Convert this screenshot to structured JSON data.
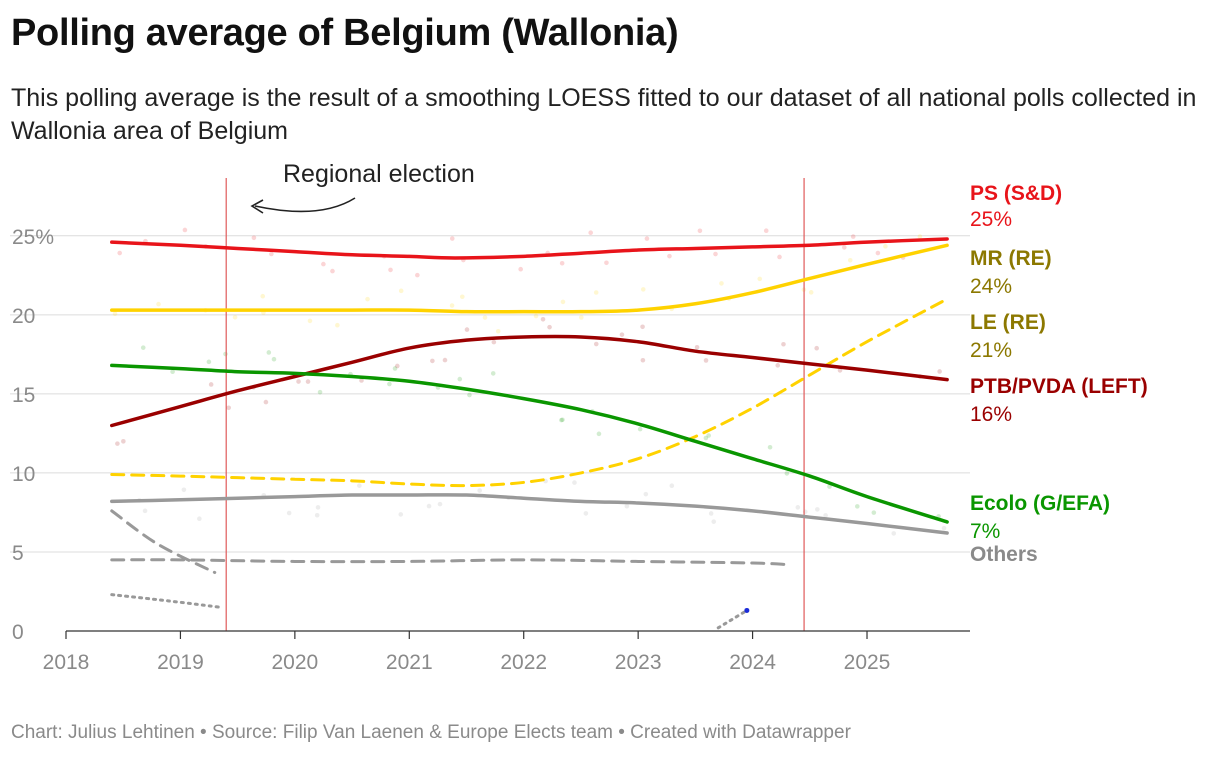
{
  "header": {
    "title": "Polling average of Belgium (Wallonia)",
    "subtitle": "This polling average is the result of a smoothing LOESS fitted to our dataset of all national polls collected in Wallonia area of Belgium"
  },
  "footer": {
    "text": "Chart: Julius Lehtinen • Source: Filip Van Laenen & Europe Elects team • Created with Datawrapper"
  },
  "chart_data": {
    "type": "line",
    "title": "Polling average of Belgium (Wallonia)",
    "xlabel": "",
    "ylabel": "",
    "xlim": [
      2018,
      2025.9
    ],
    "ylim": [
      0,
      26
    ],
    "x_ticks": [
      "2018",
      "2019",
      "2020",
      "2021",
      "2022",
      "2023",
      "2024",
      "2025"
    ],
    "y_ticks": [
      {
        "value": 0,
        "label": "0"
      },
      {
        "value": 5,
        "label": "5"
      },
      {
        "value": 10,
        "label": "10"
      },
      {
        "value": 15,
        "label": "15"
      },
      {
        "value": 20,
        "label": "20"
      },
      {
        "value": 25,
        "label": "25%"
      }
    ],
    "grid": true,
    "legend": "direct labels at right",
    "annotations": [
      {
        "text": "Regional election",
        "x": 2019.4
      },
      {
        "x": 2024.45
      }
    ],
    "series": [
      {
        "name": "PS (S&D)",
        "label": "25%",
        "color": "#e8141a",
        "label_color": "#e8141a",
        "style": "solid",
        "x": [
          2018.4,
          2019.0,
          2019.5,
          2020.0,
          2020.5,
          2021.0,
          2021.4,
          2022.0,
          2022.5,
          2023.0,
          2023.5,
          2024.0,
          2024.5,
          2025.0,
          2025.7
        ],
        "y": [
          24.6,
          24.4,
          24.2,
          24.0,
          23.8,
          23.7,
          23.6,
          23.7,
          23.9,
          24.1,
          24.2,
          24.3,
          24.4,
          24.6,
          24.8
        ]
      },
      {
        "name": "MR (RE)",
        "label": "24%",
        "color": "#ffd200",
        "label_color": "#8c7800",
        "style": "solid",
        "x": [
          2018.4,
          2019.0,
          2019.5,
          2020.0,
          2020.5,
          2021.0,
          2021.5,
          2022.0,
          2022.5,
          2023.0,
          2023.5,
          2024.0,
          2024.5,
          2025.0,
          2025.7
        ],
        "y": [
          20.3,
          20.3,
          20.3,
          20.3,
          20.3,
          20.3,
          20.2,
          20.2,
          20.2,
          20.3,
          20.7,
          21.4,
          22.3,
          23.2,
          24.4
        ]
      },
      {
        "name": "LE (RE)",
        "label": "21%",
        "color": "#ffd200",
        "label_color": "#8c7800",
        "style": "dashed",
        "x": [
          2018.4,
          2019.0,
          2019.5,
          2020.0,
          2020.5,
          2021.0,
          2021.5,
          2022.0,
          2022.5,
          2023.0,
          2023.5,
          2024.0,
          2024.5,
          2025.0,
          2025.7
        ],
        "y": [
          9.9,
          9.8,
          9.7,
          9.6,
          9.5,
          9.3,
          9.2,
          9.4,
          10.0,
          10.9,
          12.3,
          14.1,
          16.2,
          18.3,
          21.0
        ]
      },
      {
        "name": "PTB/PVDA (LEFT)",
        "label": "16%",
        "color": "#9a0000",
        "label_color": "#9a0000",
        "style": "solid",
        "x": [
          2018.4,
          2019.0,
          2019.5,
          2020.0,
          2020.5,
          2021.0,
          2021.5,
          2022.0,
          2022.5,
          2023.0,
          2023.5,
          2024.0,
          2024.5,
          2025.0,
          2025.7
        ],
        "y": [
          13.0,
          14.2,
          15.2,
          16.1,
          17.0,
          17.9,
          18.4,
          18.6,
          18.6,
          18.3,
          17.7,
          17.3,
          16.9,
          16.5,
          15.9
        ]
      },
      {
        "name": "Ecolo (G/EFA)",
        "label": "7%",
        "color": "#0a9600",
        "label_color": "#0a9600",
        "style": "solid",
        "x": [
          2018.4,
          2019.0,
          2019.5,
          2020.0,
          2020.5,
          2021.0,
          2021.5,
          2022.0,
          2022.5,
          2023.0,
          2023.5,
          2024.0,
          2024.5,
          2025.0,
          2025.7
        ],
        "y": [
          16.8,
          16.6,
          16.4,
          16.3,
          16.1,
          15.8,
          15.3,
          14.7,
          14.0,
          13.1,
          12.0,
          10.9,
          9.8,
          8.5,
          6.9
        ]
      },
      {
        "name": "Others",
        "label": "",
        "color": "#999999",
        "label_color": "#8a8a8a",
        "style": "solid",
        "x": [
          2018.4,
          2019.0,
          2019.5,
          2020.0,
          2020.5,
          2021.0,
          2021.5,
          2022.0,
          2022.5,
          2023.0,
          2023.5,
          2024.0,
          2024.5,
          2025.0,
          2025.7
        ],
        "y": [
          8.2,
          8.3,
          8.4,
          8.5,
          8.6,
          8.6,
          8.6,
          8.4,
          8.2,
          8.1,
          7.9,
          7.6,
          7.2,
          6.8,
          6.2
        ]
      },
      {
        "color": "#999999",
        "style": "dashed",
        "x": [
          2018.4,
          2018.8,
          2019.3
        ],
        "y": [
          7.6,
          5.5,
          3.7
        ]
      },
      {
        "color": "#999999",
        "style": "dashed",
        "x": [
          2018.4,
          2019.0,
          2020.0,
          2021.0,
          2022.0,
          2023.0,
          2024.0,
          2024.3
        ],
        "y": [
          4.5,
          4.5,
          4.4,
          4.4,
          4.5,
          4.4,
          4.3,
          4.2
        ]
      },
      {
        "color": "#999999",
        "style": "dotted",
        "x": [
          2018.4,
          2018.9,
          2019.35
        ],
        "y": [
          2.3,
          1.9,
          1.5
        ]
      },
      {
        "color": "#999999",
        "style": "dotted",
        "x": [
          2023.7,
          2023.95
        ],
        "y": [
          0.2,
          1.3
        ]
      }
    ]
  }
}
